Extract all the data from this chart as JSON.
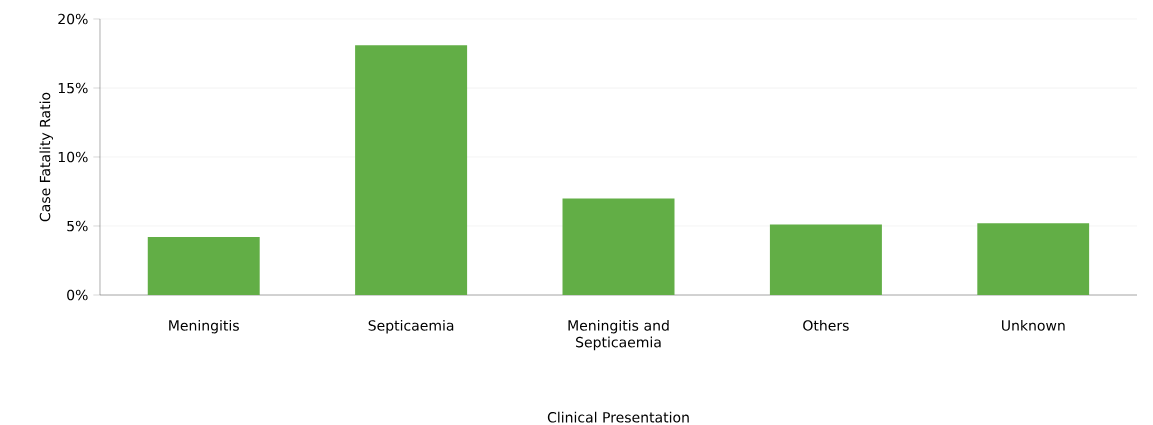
{
  "chart_data": {
    "type": "bar",
    "xlabel": "Clinical Presentation",
    "ylabel": "Case Fatality Ratio",
    "categories": [
      "Meningitis",
      "Septicaemia",
      "Meningitis and Septicaemia",
      "Others",
      "Unknown"
    ],
    "values": [
      4.2,
      18.1,
      7.0,
      5.1,
      5.2
    ],
    "color": "#62ae46",
    "ylim": [
      0,
      20
    ],
    "yticks": [
      {
        "value": 0,
        "label": "0%"
      },
      {
        "value": 5,
        "label": "5%"
      },
      {
        "value": 10,
        "label": "10%"
      },
      {
        "value": 15,
        "label": "15%"
      },
      {
        "value": 20,
        "label": "20%"
      }
    ],
    "grid": "y"
  }
}
